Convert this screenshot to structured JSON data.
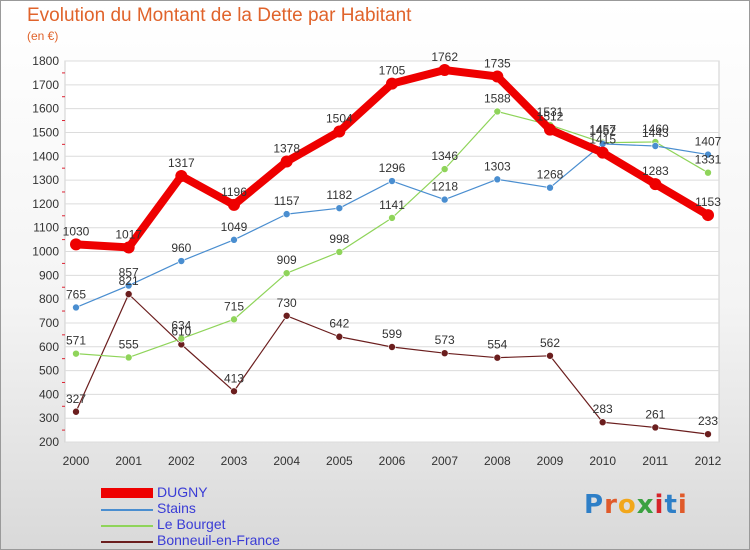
{
  "header": {
    "title": "Evolution du Montant de la Dette par Habitant",
    "subtitle": "(en €)"
  },
  "logo": {
    "text": "Proxiti",
    "letter_colors": [
      "#2e7fc7",
      "#e05a2a",
      "#f2a71b",
      "#3aa140",
      "#d6232a",
      "#2e7fc7",
      "#e05a2a"
    ]
  },
  "chart_data": {
    "type": "line",
    "title": "Evolution du Montant de la Dette par Habitant",
    "subtitle": "(en €)",
    "xlabel": "",
    "ylabel": "",
    "x": [
      "2000",
      "2001",
      "2002",
      "2003",
      "2004",
      "2005",
      "2006",
      "2007",
      "2008",
      "2009",
      "2010",
      "2011",
      "2012"
    ],
    "ylim": [
      200,
      1800
    ],
    "yticks": [
      200,
      300,
      400,
      500,
      600,
      700,
      800,
      900,
      1000,
      1100,
      1200,
      1300,
      1400,
      1500,
      1600,
      1700,
      1800
    ],
    "legend_position": "bottom-left",
    "series": [
      {
        "name": "DUGNY",
        "color": "#ee0000",
        "values": [
          1030,
          1017,
          1317,
          1196,
          1378,
          1504,
          1705,
          1762,
          1735,
          1512,
          1415,
          1283,
          1153
        ]
      },
      {
        "name": "Stains",
        "color": "#4a8ed0",
        "values": [
          765,
          857,
          960,
          1049,
          1157,
          1182,
          1296,
          1218,
          1303,
          1268,
          1452,
          1443,
          1407
        ]
      },
      {
        "name": "Le Bourget",
        "color": "#8fd45a",
        "values": [
          571,
          555,
          634,
          715,
          909,
          998,
          1141,
          1346,
          1588,
          1531,
          1457,
          1460,
          1331
        ]
      },
      {
        "name": "Bonneuil-en-France",
        "color": "#6b1e1e",
        "values": [
          327,
          821,
          610,
          413,
          730,
          642,
          599,
          573,
          554,
          562,
          283,
          261,
          233
        ]
      }
    ]
  }
}
